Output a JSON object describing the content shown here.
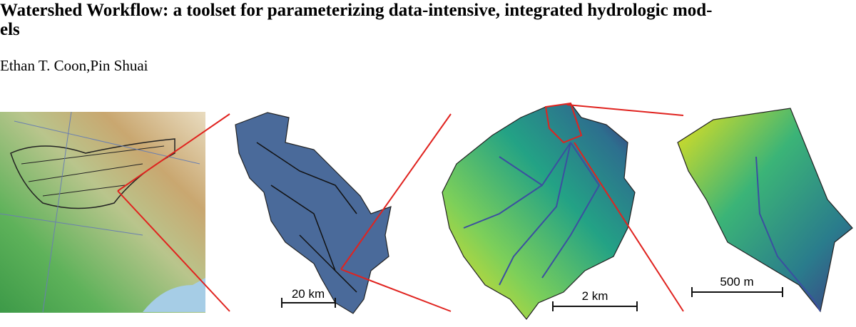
{
  "header": {
    "title_lines": [
      "Watershed Workflow: a toolset for parameterizing data-intensive, integrated hydrologic mod-",
      "els"
    ],
    "authors": "Ethan T. Coon,Pin Shuai"
  },
  "figure": {
    "scale_bars": [
      "20 km",
      "2 km",
      "500 m"
    ]
  }
}
